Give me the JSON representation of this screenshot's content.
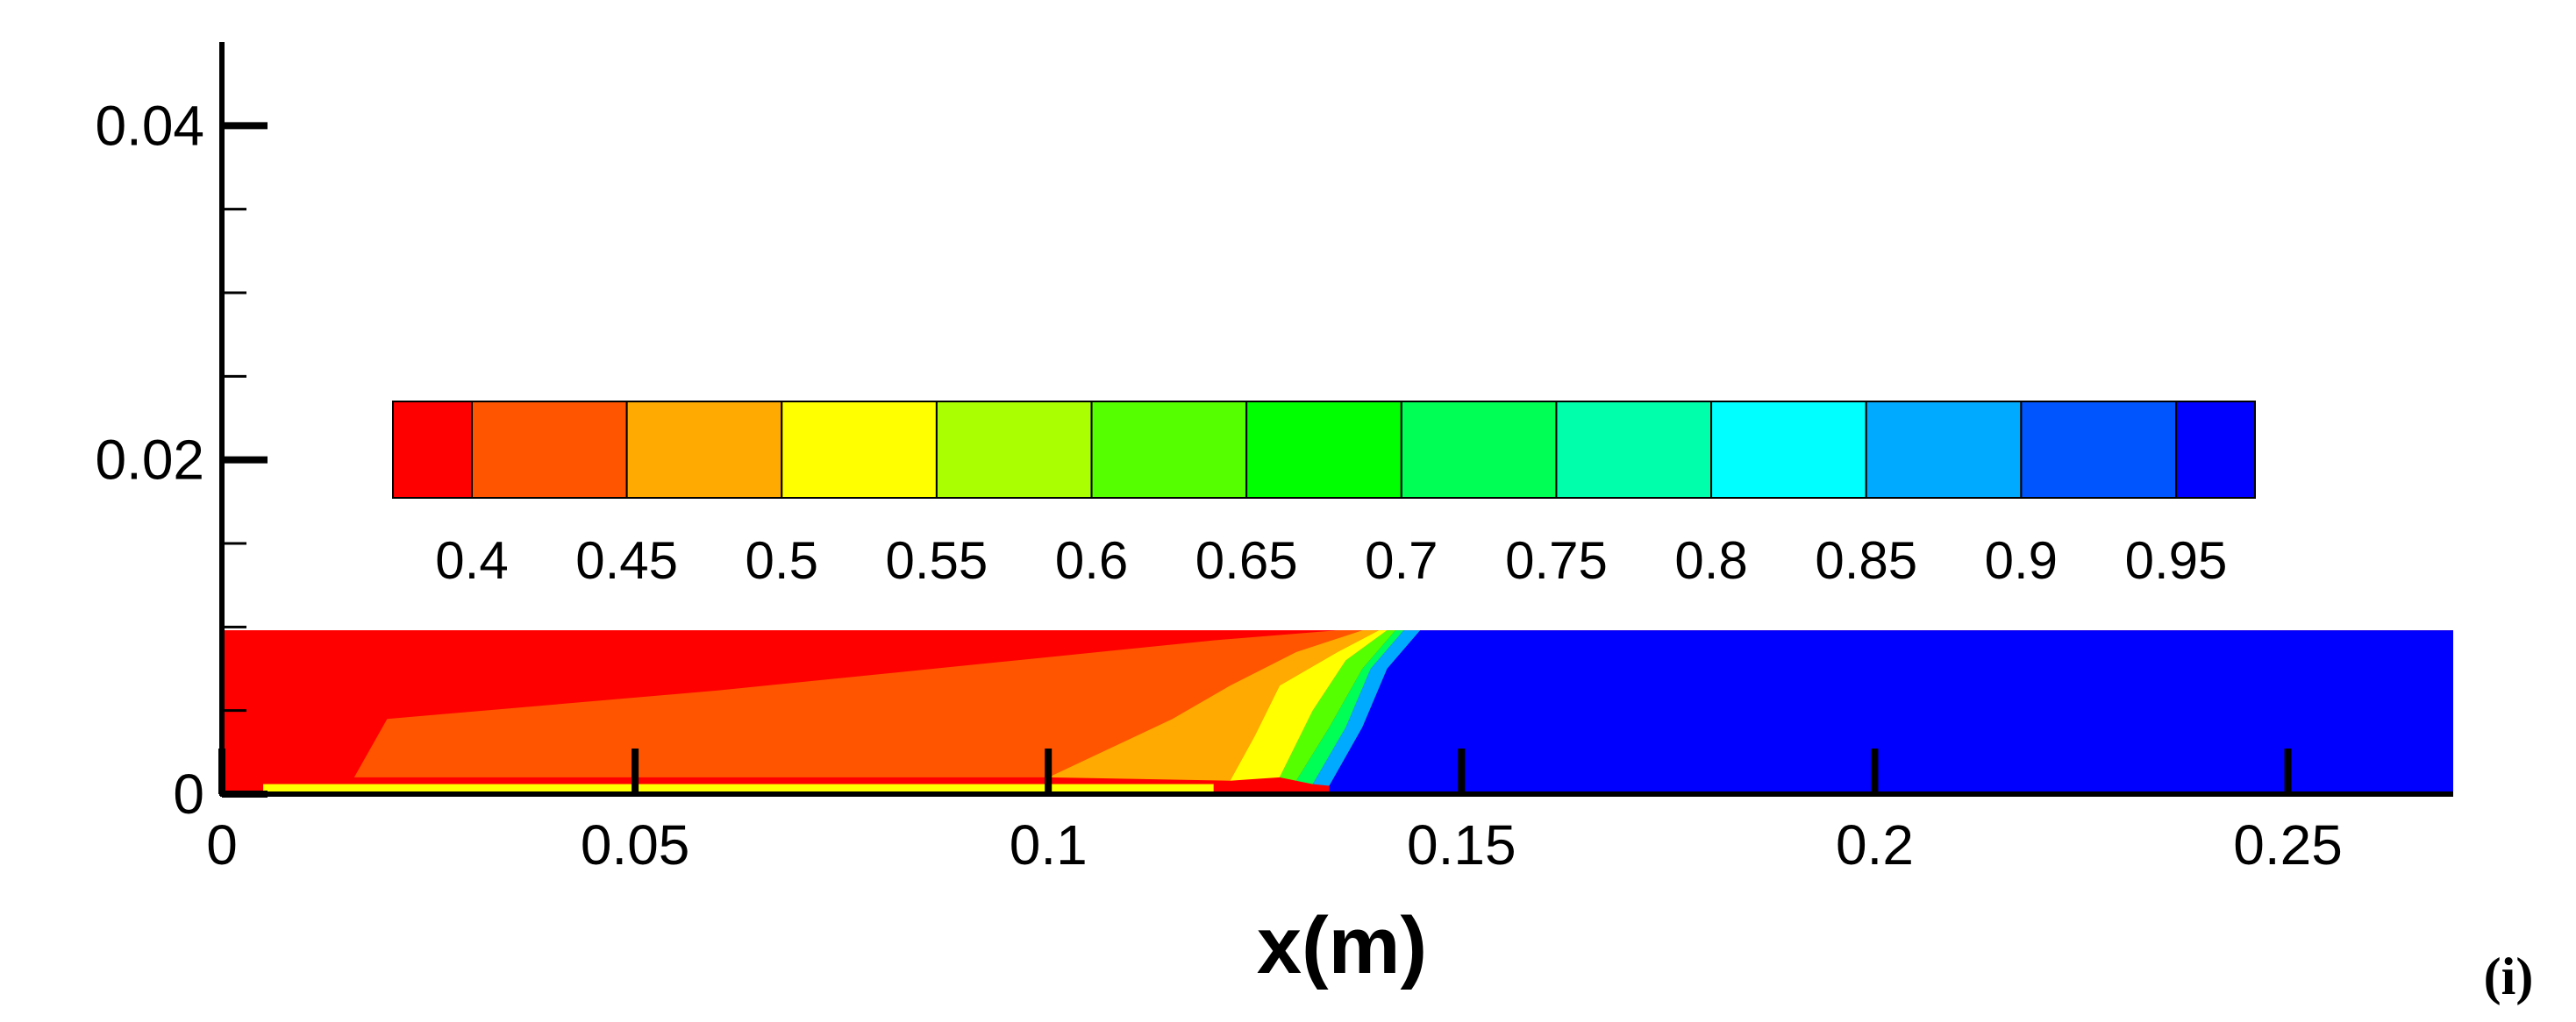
{
  "chart_data": {
    "type": "heatmap",
    "title": "",
    "xlabel": "x(m)",
    "ylabel": "",
    "xlim": [
      0,
      0.27
    ],
    "ylim": [
      0,
      0.045
    ],
    "x_ticks": [
      "0",
      "0.05",
      "0.1",
      "0.15",
      "0.2",
      "0.25"
    ],
    "y_ticks": [
      "0",
      "0.02",
      "0.04"
    ],
    "x_tick_values": [
      0,
      0.05,
      0.1,
      0.15,
      0.2,
      0.25
    ],
    "y_tick_values": [
      0,
      0.02,
      0.04
    ],
    "y_minor_tick_values": [
      0.005,
      0.01,
      0.015,
      0.025,
      0.03,
      0.035
    ],
    "domain_extent": {
      "x": [
        0,
        0.27
      ],
      "y": [
        0,
        0.0098
      ]
    },
    "colorbar": {
      "placement": "inside-top",
      "levels": [
        "0.4",
        "0.45",
        "0.5",
        "0.55",
        "0.6",
        "0.65",
        "0.7",
        "0.75",
        "0.8",
        "0.85",
        "0.9",
        "0.95"
      ],
      "colors": [
        "#ff0000",
        "#ff5500",
        "#ffaa00",
        "#ffff00",
        "#aaff00",
        "#55ff00",
        "#00ff00",
        "#00ff55",
        "#00ffaa",
        "#00ffff",
        "#00aaff",
        "#0055ff",
        "#0000ff"
      ]
    },
    "contour_bands": [
      {
        "level": "0.4",
        "color": "#ff0000",
        "boundary": [
          [
            0,
            0.0098
          ],
          [
            0.135,
            0.0098
          ],
          [
            0.12,
            0.0092
          ],
          [
            0.1,
            0.0082
          ],
          [
            0.06,
            0.0062
          ],
          [
            0.02,
            0.0045
          ],
          [
            0.016,
            0.001
          ],
          [
            0,
            0.001
          ]
        ]
      },
      {
        "level": "0.45",
        "color": "#ff5500",
        "boundary": [
          [
            0.135,
            0.0098
          ],
          [
            0.138,
            0.0098
          ],
          [
            0.13,
            0.0085
          ],
          [
            0.122,
            0.0065
          ],
          [
            0.115,
            0.0045
          ],
          [
            0.1,
            0.001
          ],
          [
            0.016,
            0.001
          ],
          [
            0.02,
            0.0045
          ],
          [
            0.06,
            0.0062
          ],
          [
            0.1,
            0.0082
          ],
          [
            0.12,
            0.0092
          ]
        ]
      },
      {
        "level": "0.5",
        "color": "#ffaa00",
        "boundary": [
          [
            0.138,
            0.0098
          ],
          [
            0.14,
            0.0098
          ],
          [
            0.135,
            0.0085
          ],
          [
            0.128,
            0.0065
          ],
          [
            0.125,
            0.0035
          ],
          [
            0.122,
            0.0008
          ],
          [
            0.1,
            0.001
          ],
          [
            0.115,
            0.0045
          ],
          [
            0.122,
            0.0065
          ],
          [
            0.13,
            0.0085
          ]
        ]
      },
      {
        "level": "0.55",
        "color": "#ffff00",
        "boundary": [
          [
            0.14,
            0.0098
          ],
          [
            0.141,
            0.0098
          ],
          [
            0.136,
            0.008
          ],
          [
            0.132,
            0.005
          ],
          [
            0.128,
            0.001
          ],
          [
            0.122,
            0.0008
          ],
          [
            0.125,
            0.0035
          ],
          [
            0.128,
            0.0065
          ],
          [
            0.135,
            0.0085
          ]
        ]
      },
      {
        "level": "0.65",
        "color": "#55ff00",
        "boundary": [
          [
            0.141,
            0.0098
          ],
          [
            0.142,
            0.0098
          ],
          [
            0.138,
            0.0075
          ],
          [
            0.134,
            0.004
          ],
          [
            0.13,
            0.0008
          ],
          [
            0.128,
            0.001
          ],
          [
            0.132,
            0.005
          ],
          [
            0.136,
            0.008
          ]
        ]
      },
      {
        "level": "0.75",
        "color": "#00ff55",
        "boundary": [
          [
            0.142,
            0.0098
          ],
          [
            0.143,
            0.0098
          ],
          [
            0.139,
            0.0075
          ],
          [
            0.136,
            0.004
          ],
          [
            0.132,
            0.0006
          ],
          [
            0.13,
            0.0008
          ],
          [
            0.134,
            0.004
          ],
          [
            0.138,
            0.0075
          ]
        ]
      },
      {
        "level": "0.85",
        "color": "#00aaff",
        "boundary": [
          [
            0.143,
            0.0098
          ],
          [
            0.145,
            0.0098
          ],
          [
            0.141,
            0.0075
          ],
          [
            0.138,
            0.004
          ],
          [
            0.134,
            0.0005
          ],
          [
            0.132,
            0.0006
          ],
          [
            0.136,
            0.004
          ],
          [
            0.139,
            0.0075
          ]
        ]
      },
      {
        "level": "0.95",
        "color": "#0000ff",
        "boundary": [
          [
            0.145,
            0.0098
          ],
          [
            0.27,
            0.0098
          ],
          [
            0.27,
            0
          ],
          [
            0.134,
            0
          ],
          [
            0.134,
            0.0005
          ],
          [
            0.138,
            0.004
          ],
          [
            0.141,
            0.0075
          ]
        ]
      }
    ],
    "wall_layer": {
      "color": "#ffff00",
      "x": [
        0.005,
        0.12
      ],
      "y": [
        0,
        0.0006
      ]
    },
    "panel_label": "(i)"
  }
}
